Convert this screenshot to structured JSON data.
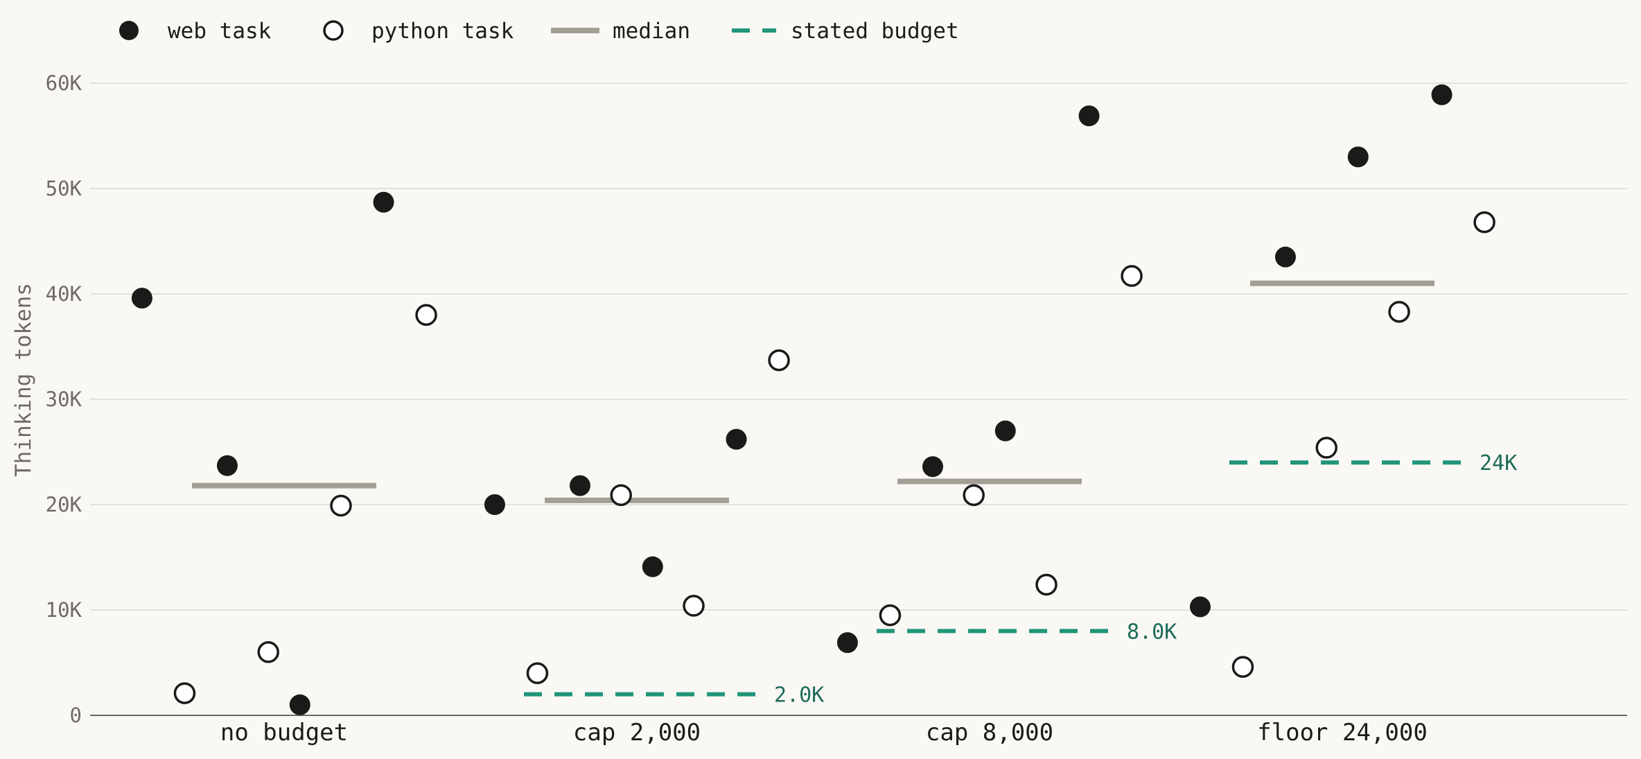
{
  "chart_data": {
    "type": "scatter",
    "ylabel": "Thinking tokens",
    "ylim": [
      0,
      62000
    ],
    "yticks": [
      0,
      10000,
      20000,
      30000,
      40000,
      50000,
      60000
    ],
    "ytick_labels": [
      "0",
      "10K",
      "20K",
      "30K",
      "40K",
      "50K",
      "60K"
    ],
    "grid": "horizontal",
    "legend_position": "top-left",
    "legend": [
      {
        "key": "web",
        "label": "web task"
      },
      {
        "key": "python",
        "label": "python task"
      },
      {
        "key": "median",
        "label": "median"
      },
      {
        "key": "budget",
        "label": "stated budget"
      }
    ],
    "colors": {
      "web": "#1a1a18",
      "python_fill": "#ffffff",
      "python_stroke": "#1a1a18",
      "median": "#a39e96",
      "budget": "#21957a",
      "budget_label": "#1e6b5a"
    },
    "categories": [
      {
        "label": "no budget",
        "median": 21800,
        "budget": null,
        "budget_label": "",
        "points": [
          {
            "type": "web",
            "offset": -0.45,
            "y": 39600
          },
          {
            "type": "python",
            "offset": -0.315,
            "y": 2100
          },
          {
            "type": "web",
            "offset": -0.18,
            "y": 23700
          },
          {
            "type": "python",
            "offset": -0.05,
            "y": 6000
          },
          {
            "type": "web",
            "offset": 0.05,
            "y": 1000
          },
          {
            "type": "python",
            "offset": 0.18,
            "y": 19900
          },
          {
            "type": "web",
            "offset": 0.315,
            "y": 48700
          },
          {
            "type": "python",
            "offset": 0.45,
            "y": 38000
          }
        ]
      },
      {
        "label": "cap 2,000",
        "median": 20400,
        "budget": 2000,
        "budget_label": "2.0K",
        "points": [
          {
            "type": "web",
            "offset": -0.45,
            "y": 20000
          },
          {
            "type": "python",
            "offset": -0.315,
            "y": 4000
          },
          {
            "type": "web",
            "offset": -0.18,
            "y": 21800
          },
          {
            "type": "python",
            "offset": -0.05,
            "y": 20900
          },
          {
            "type": "web",
            "offset": 0.05,
            "y": 14100
          },
          {
            "type": "python",
            "offset": 0.18,
            "y": 10400
          },
          {
            "type": "web",
            "offset": 0.315,
            "y": 26200
          },
          {
            "type": "python",
            "offset": 0.45,
            "y": 33700
          }
        ]
      },
      {
        "label": "cap 8,000",
        "median": 22200,
        "budget": 8000,
        "budget_label": "8.0K",
        "points": [
          {
            "type": "web",
            "offset": -0.45,
            "y": 6900
          },
          {
            "type": "python",
            "offset": -0.315,
            "y": 9500
          },
          {
            "type": "web",
            "offset": -0.18,
            "y": 23600
          },
          {
            "type": "python",
            "offset": -0.05,
            "y": 20900
          },
          {
            "type": "web",
            "offset": 0.05,
            "y": 27000
          },
          {
            "type": "python",
            "offset": 0.18,
            "y": 12400
          },
          {
            "type": "web",
            "offset": 0.315,
            "y": 56900
          },
          {
            "type": "python",
            "offset": 0.45,
            "y": 41700
          }
        ]
      },
      {
        "label": "floor 24,000",
        "median": 41000,
        "budget": 24000,
        "budget_label": "24K",
        "points": [
          {
            "type": "web",
            "offset": -0.45,
            "y": 10300
          },
          {
            "type": "python",
            "offset": -0.315,
            "y": 4600
          },
          {
            "type": "web",
            "offset": -0.18,
            "y": 43500
          },
          {
            "type": "python",
            "offset": -0.05,
            "y": 25400
          },
          {
            "type": "web",
            "offset": 0.05,
            "y": 53000
          },
          {
            "type": "python",
            "offset": 0.18,
            "y": 38300
          },
          {
            "type": "web",
            "offset": 0.315,
            "y": 58900
          },
          {
            "type": "python",
            "offset": 0.45,
            "y": 46800
          }
        ]
      }
    ]
  }
}
